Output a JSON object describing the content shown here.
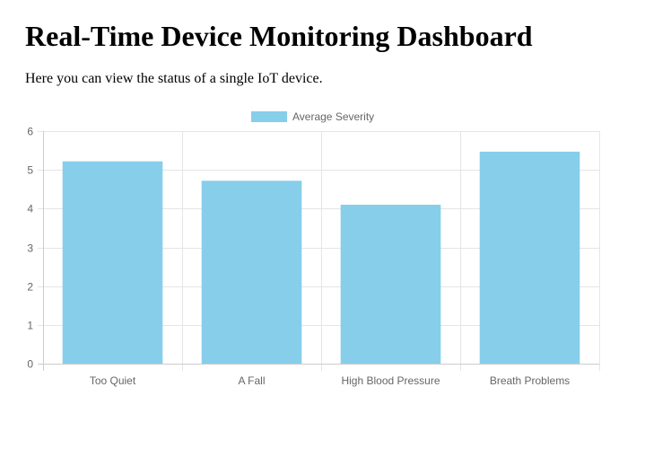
{
  "page": {
    "title": "Real-Time Device Monitoring Dashboard",
    "intro": "Here you can view the status of a single IoT device."
  },
  "colors": {
    "bar": "#87ceeb",
    "grid": "#e5e5e5",
    "axis": "#cccccc",
    "tick_text": "#666666"
  },
  "chart_data": {
    "type": "bar",
    "categories": [
      "Too Quiet",
      "A Fall",
      "High Blood Pressure",
      "Breath Problems"
    ],
    "series": [
      {
        "name": "Average Severity",
        "values": [
          5.22,
          4.72,
          4.1,
          5.47
        ]
      }
    ],
    "ylim": [
      0,
      6
    ],
    "yticks": [
      "0",
      "1",
      "2",
      "3",
      "4",
      "5",
      "6"
    ],
    "grid": true,
    "legend_position": "top"
  }
}
